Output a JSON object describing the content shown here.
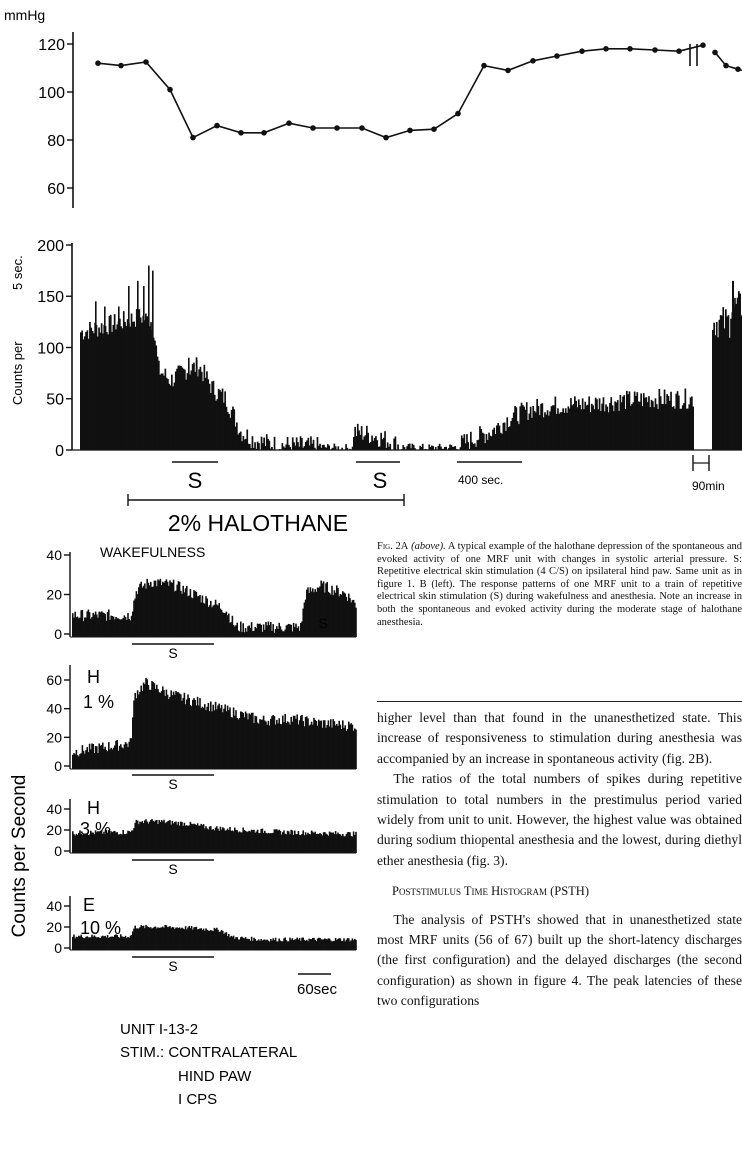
{
  "fig_a": {
    "bp_unit": "mmHg",
    "bp_ticks": [
      "120",
      "100",
      "80",
      "60"
    ],
    "bp_values": [
      112,
      111,
      112.5,
      101,
      81,
      86,
      83,
      83,
      87,
      85,
      85,
      85,
      81,
      84,
      84.5,
      91,
      111,
      109,
      113,
      115,
      117,
      118,
      118,
      117.5,
      117,
      119.5,
      116.5,
      111,
      109.5
    ],
    "counts_ticks": [
      "200",
      "150",
      "100",
      "50",
      "0"
    ],
    "counts_ylabel": "Counts per",
    "counts_ylabel_unit": "5 sec.",
    "stim_labels": [
      "S",
      "S"
    ],
    "scale_label": "400 sec.",
    "break_label": "90min",
    "halothane_label": "2% HALOTHANE"
  },
  "fig_b": {
    "ylabel": "Counts per Second",
    "panels": [
      {
        "label1": "WAKEFULNESS",
        "label2": "",
        "ticks": [
          "40",
          "20",
          "0"
        ],
        "stim_labels": [
          "S",
          "S"
        ]
      },
      {
        "label1": "H",
        "label2": "1 %",
        "ticks": [
          "60",
          "40",
          "20",
          "0"
        ],
        "stim_labels": [
          "S"
        ]
      },
      {
        "label1": "H",
        "label2": "3 %",
        "ticks": [
          "40",
          "20",
          "0"
        ],
        "stim_labels": [
          "S"
        ]
      },
      {
        "label1": "E",
        "label2": "10 %",
        "ticks": [
          "40",
          "20",
          "0"
        ],
        "stim_labels": [
          "S"
        ]
      }
    ],
    "time_scale": "60sec",
    "unit_info": [
      "UNIT I-13-2",
      "STIM.: CONTRALATERAL",
      "HIND PAW",
      "I CPS"
    ]
  },
  "caption": {
    "label": "Fig. 2A",
    "above": "(above).",
    "text": "A typical example of the halothane depression of the spontaneous and evoked activity of one MRF unit with changes in systolic arterial pressure. S: Repetitive electrical skin stimulation (4 C/S) on ipsilateral hind paw. Same unit as in figure 1. B (left). The response patterns of one MRF unit to a train of repetitive electrical skin stimulation (S) during wakefulness and anesthesia. Note an increase in both the spontaneous and evoked activity during the moderate stage of halothane anesthesia."
  },
  "body": {
    "p1": "higher level than that found in the unanesthetized state. This increase of responsiveness to stimulation during anesthesia was accompanied by an increase in spontaneous activity (fig. 2B).",
    "p2": "The ratios of the total numbers of spikes during repetitive stimulation to total numbers in the prestimulus period varied widely from unit to unit. However, the highest value was obtained during sodium thiopental anesthesia and the lowest, during diethyl ether anesthesia (fig. 3).",
    "heading": "Poststimulus Time Histogram (PSTH)",
    "p3": "The analysis of PSTH's showed that in unanesthetized state most MRF units (56 of 67) built up the short-latency discharges (the first configuration) and the delayed discharges (the second configuration) as shown in figure 4. The peak latencies of these two configurations"
  }
}
